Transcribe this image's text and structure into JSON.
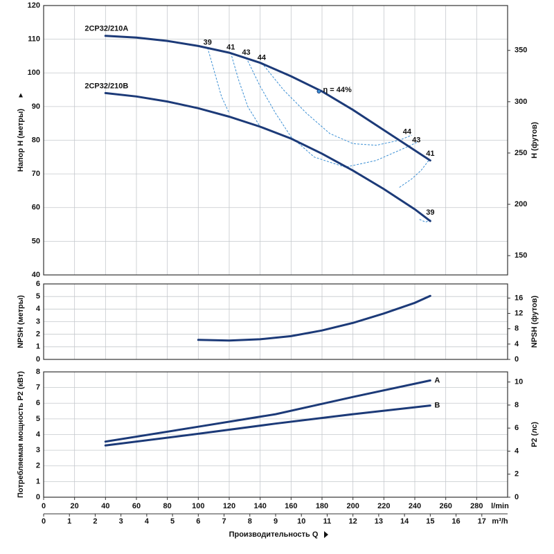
{
  "chart_data": [
    {
      "type": "line",
      "ylabel": "Напор H (метры)",
      "y2label": "H (футов)",
      "ylim": [
        40,
        120
      ],
      "yticks": [
        40,
        50,
        60,
        70,
        80,
        90,
        100,
        110,
        120
      ],
      "y2lim": [
        131.2,
        393.7
      ],
      "y2ticks": [
        150,
        200,
        250,
        300,
        350
      ],
      "grid": true,
      "series": [
        {
          "name": "2CP32/210A",
          "color": "#1c3a78",
          "x": [
            40,
            60,
            80,
            100,
            120,
            140,
            160,
            180,
            200,
            220,
            240,
            250
          ],
          "values": [
            111,
            110.5,
            109.5,
            108,
            106,
            103,
            99,
            94.5,
            89,
            83,
            77,
            74
          ]
        },
        {
          "name": "2CP32/210B",
          "color": "#1c3a78",
          "x": [
            40,
            60,
            80,
            100,
            120,
            140,
            160,
            180,
            200,
            220,
            240,
            250
          ],
          "values": [
            94,
            93,
            91.5,
            89.5,
            87,
            84,
            80.5,
            76,
            71,
            65.5,
            59.5,
            56
          ]
        }
      ],
      "efficiency_color": "#3b8fd4",
      "efficiency_curves": [
        {
          "x": [
            106,
            110,
            115,
            120
          ],
          "values": [
            107.5,
            101,
            93,
            88
          ]
        },
        {
          "x": [
            121,
            126,
            132,
            140
          ],
          "values": [
            106,
            98,
            90,
            84
          ]
        },
        {
          "x": [
            131,
            140,
            150,
            160,
            175,
            195,
            215,
            235,
            242
          ],
          "values": [
            104.5,
            96,
            88,
            81,
            75,
            72,
            74,
            78,
            79.5
          ]
        },
        {
          "x": [
            141,
            155,
            170,
            185,
            200,
            215,
            230,
            238
          ],
          "values": [
            103,
            95,
            88,
            82,
            79,
            78.5,
            80,
            81.5
          ]
        },
        {
          "x": [
            230,
            238,
            244,
            249
          ],
          "values": [
            66,
            68.5,
            71,
            74
          ]
        },
        {
          "x": [
            243,
            247,
            251
          ],
          "values": [
            56.5,
            55.7,
            56.5
          ]
        }
      ],
      "annotations": [
        {
          "text": "39",
          "x": 106,
          "y": 109
        },
        {
          "text": "41",
          "x": 121,
          "y": 107.5
        },
        {
          "text": "43",
          "x": 131,
          "y": 106
        },
        {
          "text": "44",
          "x": 141,
          "y": 104.5
        },
        {
          "text": "44",
          "x": 235,
          "y": 82.5
        },
        {
          "text": "43",
          "x": 241,
          "y": 80
        },
        {
          "text": "41",
          "x": 250,
          "y": 76
        },
        {
          "text": "39",
          "x": 250,
          "y": 58.5
        },
        {
          "text": "η = 44%",
          "x": 178,
          "y": 94.5
        }
      ]
    },
    {
      "type": "line",
      "ylabel": "NPSH (метры)",
      "y2label": "NPSH (футов)",
      "ylim": [
        0,
        6
      ],
      "yticks": [
        0,
        1,
        2,
        3,
        4,
        5,
        6
      ],
      "y2lim": [
        0,
        19.685
      ],
      "y2ticks": [
        0,
        4,
        8,
        12,
        16
      ],
      "grid": true,
      "series": [
        {
          "color": "#1c3a78",
          "x": [
            100,
            120,
            140,
            160,
            180,
            200,
            220,
            240,
            250
          ],
          "values": [
            1.55,
            1.5,
            1.6,
            1.85,
            2.3,
            2.9,
            3.65,
            4.5,
            5.05
          ]
        }
      ]
    },
    {
      "type": "line",
      "ylabel": "Потребляемая мощность P2 (кВт)",
      "y2label": "P2 (лс)",
      "ylim": [
        0,
        8
      ],
      "yticks": [
        0,
        1,
        2,
        3,
        4,
        5,
        6,
        7,
        8
      ],
      "y2lim": [
        0,
        10.88
      ],
      "y2ticks": [
        0,
        2,
        4,
        6,
        8,
        10
      ],
      "grid": true,
      "xlabel": "Производительность Q",
      "xunit": "l/min",
      "xlim": [
        0,
        300
      ],
      "xticks": [
        0,
        20,
        40,
        60,
        80,
        100,
        120,
        140,
        160,
        180,
        200,
        220,
        240,
        260,
        280
      ],
      "x2unit": "m³/h",
      "x2lim": [
        0,
        18
      ],
      "x2ticks": [
        0,
        1,
        2,
        3,
        4,
        5,
        6,
        7,
        8,
        9,
        10,
        11,
        12,
        13,
        14,
        15,
        16,
        17
      ],
      "series": [
        {
          "name": "A",
          "color": "#1c3a78",
          "x": [
            40,
            100,
            150,
            200,
            250
          ],
          "values": [
            3.55,
            4.5,
            5.3,
            6.4,
            7.45
          ]
        },
        {
          "name": "B",
          "color": "#1c3a78",
          "x": [
            40,
            100,
            150,
            200,
            250
          ],
          "values": [
            3.3,
            4.05,
            4.7,
            5.3,
            5.85
          ]
        }
      ]
    }
  ]
}
